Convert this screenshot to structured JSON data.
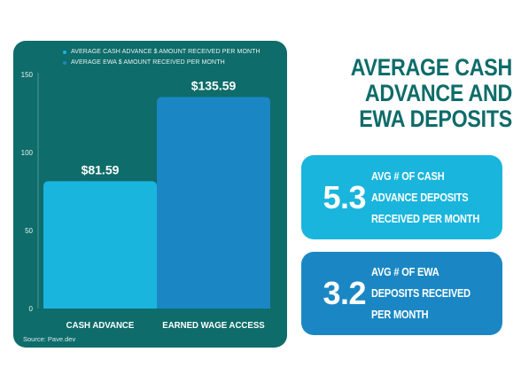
{
  "colors": {
    "card_bg": "#0e6c6a",
    "bar_cash": "#1ab5dd",
    "bar_ewa": "#1a87c4",
    "title": "#0e6c6a",
    "stat1_bg": "#1ab5dd",
    "stat2_bg": "#1a87c4"
  },
  "heading": {
    "title": "AVERAGE CASH ADVANCE AND EWA DEPOSITS"
  },
  "stats": [
    {
      "value": "5.3",
      "label": "AVG # OF CASH ADVANCE DEPOSITS RECEIVED PER MONTH"
    },
    {
      "value": "3.2",
      "label": "AVG # OF EWA DEPOSITS RECEIVED PER MONTH"
    }
  ],
  "source": "Source: Pave.dev",
  "chart_data": {
    "type": "bar",
    "categories": [
      "CASH ADVANCE",
      "EARNED WAGE ACCESS"
    ],
    "series": [
      {
        "name": "AVERAGE CASH ADVANCE $ AMOUNT RECEIVED PER MONTH",
        "color": "#1ab5dd"
      },
      {
        "name": "AVERAGE EWA $ AMOUNT RECEIVED PER MONTH",
        "color": "#1a87c4"
      }
    ],
    "values": [
      81.59,
      135.59
    ],
    "value_labels": [
      "$81.59",
      "$135.59"
    ],
    "ylim": [
      0,
      150
    ],
    "yticks": [
      0,
      50,
      100,
      150
    ],
    "grid": false,
    "legend": "top-center"
  }
}
